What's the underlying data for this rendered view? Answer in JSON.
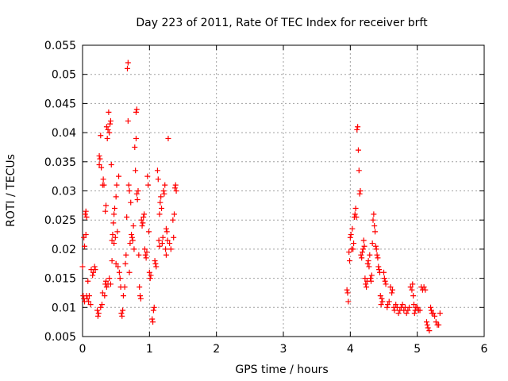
{
  "chart_data": {
    "type": "scatter",
    "title": "Day 223 of 2011, Rate Of TEC Index for receiver brft",
    "xlabel": "GPS time / hours",
    "ylabel": "ROTI / TECUs",
    "xlim": [
      0,
      6
    ],
    "ylim": [
      0.005,
      0.055
    ],
    "xticks": [
      0,
      1,
      2,
      3,
      4,
      5,
      6
    ],
    "yticks": [
      0.005,
      0.01,
      0.015,
      0.02,
      0.025,
      0.03,
      0.035,
      0.04,
      0.045,
      0.05,
      0.055
    ],
    "xtick_labels": [
      "0",
      "1",
      "2",
      "3",
      "4",
      "5",
      "6"
    ],
    "ytick_labels": [
      "0.005",
      "0.01",
      "0.015",
      "0.02",
      "0.025",
      "0.03",
      "0.035",
      "0.04",
      "0.045",
      "0.05",
      "0.055"
    ],
    "grid": true,
    "marker": "+",
    "marker_color": "#ff0000",
    "points": [
      [
        0.0,
        0.017
      ],
      [
        0.01,
        0.012
      ],
      [
        0.02,
        0.0115
      ],
      [
        0.02,
        0.022
      ],
      [
        0.03,
        0.011
      ],
      [
        0.03,
        0.0205
      ],
      [
        0.04,
        0.026
      ],
      [
        0.05,
        0.0265
      ],
      [
        0.05,
        0.0225
      ],
      [
        0.06,
        0.012
      ],
      [
        0.06,
        0.0255
      ],
      [
        0.07,
        0.0115
      ],
      [
        0.08,
        0.0145
      ],
      [
        0.09,
        0.011
      ],
      [
        0.1,
        0.012
      ],
      [
        0.12,
        0.0105
      ],
      [
        0.13,
        0.0165
      ],
      [
        0.15,
        0.0155
      ],
      [
        0.16,
        0.016
      ],
      [
        0.18,
        0.017
      ],
      [
        0.19,
        0.0165
      ],
      [
        0.22,
        0.0095
      ],
      [
        0.23,
        0.0085
      ],
      [
        0.24,
        0.009
      ],
      [
        0.25,
        0.0345
      ],
      [
        0.25,
        0.036
      ],
      [
        0.26,
        0.0355
      ],
      [
        0.27,
        0.0395
      ],
      [
        0.27,
        0.01
      ],
      [
        0.28,
        0.034
      ],
      [
        0.29,
        0.0105
      ],
      [
        0.3,
        0.031
      ],
      [
        0.3,
        0.0125
      ],
      [
        0.31,
        0.032
      ],
      [
        0.32,
        0.031
      ],
      [
        0.33,
        0.012
      ],
      [
        0.34,
        0.014
      ],
      [
        0.34,
        0.0265
      ],
      [
        0.35,
        0.0275
      ],
      [
        0.35,
        0.0145
      ],
      [
        0.36,
        0.041
      ],
      [
        0.36,
        0.0135
      ],
      [
        0.37,
        0.039
      ],
      [
        0.38,
        0.0405
      ],
      [
        0.38,
        0.014
      ],
      [
        0.39,
        0.0435
      ],
      [
        0.4,
        0.04
      ],
      [
        0.4,
        0.015
      ],
      [
        0.41,
        0.0415
      ],
      [
        0.42,
        0.042
      ],
      [
        0.42,
        0.014
      ],
      [
        0.43,
        0.0345
      ],
      [
        0.44,
        0.0215
      ],
      [
        0.44,
        0.018
      ],
      [
        0.45,
        0.0225
      ],
      [
        0.46,
        0.0245
      ],
      [
        0.47,
        0.026
      ],
      [
        0.47,
        0.021
      ],
      [
        0.48,
        0.027
      ],
      [
        0.49,
        0.022
      ],
      [
        0.5,
        0.029
      ],
      [
        0.5,
        0.0175
      ],
      [
        0.51,
        0.031
      ],
      [
        0.52,
        0.023
      ],
      [
        0.53,
        0.017
      ],
      [
        0.54,
        0.0325
      ],
      [
        0.55,
        0.016
      ],
      [
        0.56,
        0.015
      ],
      [
        0.57,
        0.0135
      ],
      [
        0.58,
        0.009
      ],
      [
        0.59,
        0.0085
      ],
      [
        0.6,
        0.0095
      ],
      [
        0.61,
        0.012
      ],
      [
        0.63,
        0.0135
      ],
      [
        0.64,
        0.0175
      ],
      [
        0.65,
        0.019
      ],
      [
        0.66,
        0.0255
      ],
      [
        0.67,
        0.051
      ],
      [
        0.68,
        0.052
      ],
      [
        0.68,
        0.042
      ],
      [
        0.69,
        0.031
      ],
      [
        0.7,
        0.03
      ],
      [
        0.7,
        0.016
      ],
      [
        0.71,
        0.021
      ],
      [
        0.72,
        0.028
      ],
      [
        0.73,
        0.0225
      ],
      [
        0.74,
        0.022
      ],
      [
        0.75,
        0.0215
      ],
      [
        0.76,
        0.024
      ],
      [
        0.77,
        0.02
      ],
      [
        0.78,
        0.0375
      ],
      [
        0.79,
        0.0335
      ],
      [
        0.8,
        0.039
      ],
      [
        0.8,
        0.0435
      ],
      [
        0.81,
        0.044
      ],
      [
        0.81,
        0.0295
      ],
      [
        0.82,
        0.0285
      ],
      [
        0.83,
        0.03
      ],
      [
        0.84,
        0.019
      ],
      [
        0.85,
        0.0135
      ],
      [
        0.86,
        0.012
      ],
      [
        0.87,
        0.0115
      ],
      [
        0.88,
        0.025
      ],
      [
        0.89,
        0.024
      ],
      [
        0.9,
        0.0245
      ],
      [
        0.91,
        0.0255
      ],
      [
        0.92,
        0.026
      ],
      [
        0.93,
        0.02
      ],
      [
        0.94,
        0.019
      ],
      [
        0.95,
        0.0185
      ],
      [
        0.96,
        0.0195
      ],
      [
        0.97,
        0.0325
      ],
      [
        0.98,
        0.031
      ],
      [
        0.99,
        0.023
      ],
      [
        1.0,
        0.016
      ],
      [
        1.01,
        0.015
      ],
      [
        1.02,
        0.0155
      ],
      [
        1.04,
        0.008
      ],
      [
        1.05,
        0.0075
      ],
      [
        1.06,
        0.0095
      ],
      [
        1.07,
        0.01
      ],
      [
        1.08,
        0.018
      ],
      [
        1.09,
        0.0175
      ],
      [
        1.1,
        0.017
      ],
      [
        1.12,
        0.0335
      ],
      [
        1.13,
        0.032
      ],
      [
        1.14,
        0.0215
      ],
      [
        1.15,
        0.0205
      ],
      [
        1.15,
        0.026
      ],
      [
        1.16,
        0.028
      ],
      [
        1.17,
        0.029
      ],
      [
        1.18,
        0.027
      ],
      [
        1.19,
        0.021
      ],
      [
        1.2,
        0.022
      ],
      [
        1.21,
        0.03
      ],
      [
        1.22,
        0.0295
      ],
      [
        1.23,
        0.031
      ],
      [
        1.24,
        0.02
      ],
      [
        1.25,
        0.019
      ],
      [
        1.25,
        0.0235
      ],
      [
        1.26,
        0.023
      ],
      [
        1.27,
        0.0215
      ],
      [
        1.28,
        0.039
      ],
      [
        1.3,
        0.021
      ],
      [
        1.32,
        0.02
      ],
      [
        1.35,
        0.025
      ],
      [
        1.36,
        0.022
      ],
      [
        1.37,
        0.026
      ],
      [
        1.38,
        0.0305
      ],
      [
        1.39,
        0.031
      ],
      [
        1.4,
        0.03
      ],
      [
        3.95,
        0.013
      ],
      [
        3.96,
        0.0125
      ],
      [
        3.97,
        0.011
      ],
      [
        3.98,
        0.0195
      ],
      [
        3.99,
        0.018
      ],
      [
        4.0,
        0.022
      ],
      [
        4.01,
        0.0225
      ],
      [
        4.02,
        0.02
      ],
      [
        4.03,
        0.0235
      ],
      [
        4.04,
        0.02
      ],
      [
        4.05,
        0.021
      ],
      [
        4.06,
        0.0255
      ],
      [
        4.07,
        0.026
      ],
      [
        4.08,
        0.027
      ],
      [
        4.09,
        0.0255
      ],
      [
        4.1,
        0.0405
      ],
      [
        4.11,
        0.041
      ],
      [
        4.12,
        0.037
      ],
      [
        4.13,
        0.0335
      ],
      [
        4.14,
        0.0295
      ],
      [
        4.15,
        0.03
      ],
      [
        4.16,
        0.019
      ],
      [
        4.17,
        0.0185
      ],
      [
        4.18,
        0.0195
      ],
      [
        4.19,
        0.02
      ],
      [
        4.2,
        0.0215
      ],
      [
        4.21,
        0.0205
      ],
      [
        4.22,
        0.015
      ],
      [
        4.23,
        0.014
      ],
      [
        4.24,
        0.0135
      ],
      [
        4.25,
        0.0145
      ],
      [
        4.26,
        0.0175
      ],
      [
        4.27,
        0.018
      ],
      [
        4.28,
        0.017
      ],
      [
        4.29,
        0.019
      ],
      [
        4.3,
        0.015
      ],
      [
        4.31,
        0.0145
      ],
      [
        4.32,
        0.0155
      ],
      [
        4.33,
        0.021
      ],
      [
        4.34,
        0.025
      ],
      [
        4.35,
        0.026
      ],
      [
        4.36,
        0.024
      ],
      [
        4.37,
        0.023
      ],
      [
        4.38,
        0.0205
      ],
      [
        4.39,
        0.02
      ],
      [
        4.4,
        0.019
      ],
      [
        4.41,
        0.0185
      ],
      [
        4.42,
        0.017
      ],
      [
        4.43,
        0.0165
      ],
      [
        4.44,
        0.016
      ],
      [
        4.45,
        0.012
      ],
      [
        4.46,
        0.0105
      ],
      [
        4.47,
        0.0115
      ],
      [
        4.48,
        0.011
      ],
      [
        4.5,
        0.016
      ],
      [
        4.51,
        0.015
      ],
      [
        4.52,
        0.0145
      ],
      [
        4.53,
        0.014
      ],
      [
        4.55,
        0.01
      ],
      [
        4.56,
        0.0105
      ],
      [
        4.58,
        0.011
      ],
      [
        4.6,
        0.0135
      ],
      [
        4.62,
        0.0125
      ],
      [
        4.63,
        0.013
      ],
      [
        4.65,
        0.01
      ],
      [
        4.66,
        0.0095
      ],
      [
        4.68,
        0.0105
      ],
      [
        4.7,
        0.01
      ],
      [
        4.72,
        0.009
      ],
      [
        4.74,
        0.0095
      ],
      [
        4.76,
        0.01
      ],
      [
        4.78,
        0.0105
      ],
      [
        4.8,
        0.0095
      ],
      [
        4.82,
        0.01
      ],
      [
        4.84,
        0.009
      ],
      [
        4.86,
        0.0095
      ],
      [
        4.88,
        0.01
      ],
      [
        4.9,
        0.0135
      ],
      [
        4.92,
        0.013
      ],
      [
        4.93,
        0.014
      ],
      [
        4.94,
        0.012
      ],
      [
        4.95,
        0.0105
      ],
      [
        4.96,
        0.009
      ],
      [
        4.97,
        0.0095
      ],
      [
        4.98,
        0.01
      ],
      [
        5.0,
        0.01
      ],
      [
        5.02,
        0.0095
      ],
      [
        5.04,
        0.0095
      ],
      [
        5.06,
        0.0135
      ],
      [
        5.08,
        0.013
      ],
      [
        5.1,
        0.0135
      ],
      [
        5.12,
        0.013
      ],
      [
        5.14,
        0.0075
      ],
      [
        5.15,
        0.007
      ],
      [
        5.16,
        0.0065
      ],
      [
        5.18,
        0.006
      ],
      [
        5.2,
        0.01
      ],
      [
        5.21,
        0.0095
      ],
      [
        5.22,
        0.009
      ],
      [
        5.24,
        0.009
      ],
      [
        5.26,
        0.0085
      ],
      [
        5.28,
        0.0075
      ],
      [
        5.3,
        0.007
      ],
      [
        5.32,
        0.007
      ],
      [
        5.34,
        0.009
      ]
    ]
  }
}
